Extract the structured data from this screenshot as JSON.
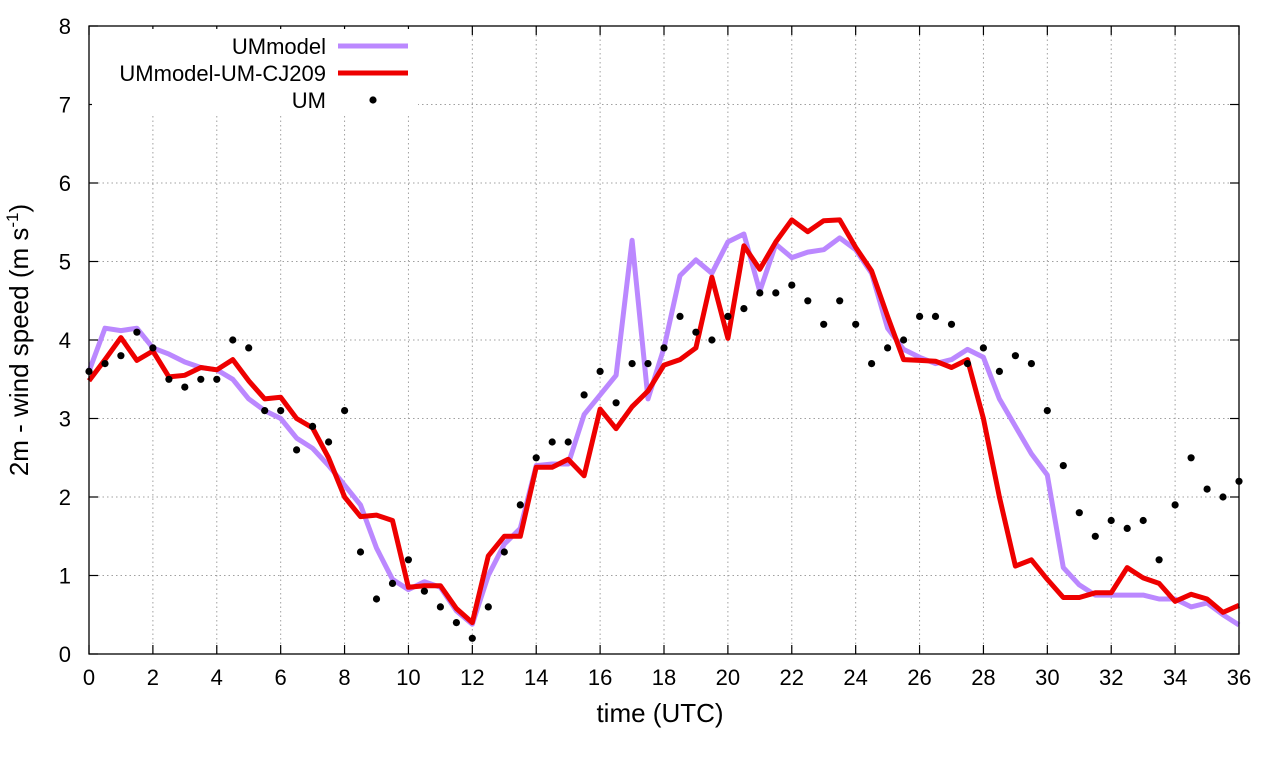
{
  "chart_data": {
    "type": "line",
    "title": "",
    "xlabel": "time (UTC)",
    "ylabel": "2m - wind speed  (m s",
    "ylabel_sup": "-1",
    "ylabel_tail": ")",
    "xlim": [
      0,
      36
    ],
    "ylim": [
      0,
      8
    ],
    "xticks": [
      "0",
      "2",
      "4",
      "6",
      "8",
      "10",
      "12",
      "14",
      "16",
      "18",
      "20",
      "22",
      "24",
      "26",
      "28",
      "30",
      "32",
      "34",
      "36"
    ],
    "yticks": [
      "0",
      "1",
      "2",
      "3",
      "4",
      "5",
      "6",
      "7",
      "8"
    ],
    "grid": true,
    "legend": "top-left",
    "series": [
      {
        "name": "UMmodel",
        "kind": "line",
        "color": "#bb88ff",
        "x": [
          0,
          0.5,
          1,
          1.5,
          2,
          2.5,
          3,
          3.5,
          4,
          4.5,
          5,
          5.5,
          6,
          6.5,
          7,
          7.5,
          8,
          8.5,
          9,
          9.5,
          10,
          10.5,
          11,
          11.5,
          12,
          12.5,
          13,
          13.5,
          14,
          14.5,
          15,
          15.5,
          16,
          16.5,
          17,
          17.5,
          18,
          18.5,
          19,
          19.5,
          20,
          20.5,
          21,
          21.5,
          22,
          22.5,
          23,
          23.5,
          24,
          24.5,
          25,
          25.5,
          26,
          26.5,
          27,
          27.5,
          28,
          28.5,
          29,
          29.5,
          30,
          30.5,
          31,
          31.5,
          32,
          32.5,
          33,
          33.5,
          34,
          34.5,
          35,
          35.5,
          36
        ],
        "y": [
          3.6,
          4.15,
          4.12,
          4.15,
          3.9,
          3.82,
          3.72,
          3.65,
          3.62,
          3.5,
          3.25,
          3.1,
          3.0,
          2.75,
          2.62,
          2.4,
          2.15,
          1.9,
          1.35,
          0.95,
          0.82,
          0.92,
          0.85,
          0.55,
          0.38,
          1.0,
          1.4,
          1.6,
          2.4,
          2.42,
          2.42,
          3.05,
          3.3,
          3.55,
          5.27,
          3.25,
          3.9,
          4.82,
          5.02,
          4.85,
          5.25,
          5.35,
          4.62,
          5.22,
          5.05,
          5.12,
          5.15,
          5.3,
          5.15,
          4.85,
          4.15,
          3.88,
          3.78,
          3.7,
          3.75,
          3.88,
          3.78,
          3.25,
          2.9,
          2.55,
          2.28,
          1.1,
          0.88,
          0.75,
          0.75,
          0.75,
          0.75,
          0.7,
          0.7,
          0.6,
          0.65,
          0.5,
          0.37
        ]
      },
      {
        "name": "UMmodel-UM-CJ209",
        "kind": "line",
        "color": "#ee0000",
        "x": [
          0,
          0.5,
          1,
          1.5,
          2,
          2.5,
          3,
          3.5,
          4,
          4.5,
          5,
          5.5,
          6,
          6.5,
          7,
          7.5,
          8,
          8.5,
          9,
          9.5,
          10,
          10.5,
          11,
          11.5,
          12,
          12.5,
          13,
          13.5,
          14,
          14.5,
          15,
          15.5,
          16,
          16.5,
          17,
          17.5,
          18,
          18.5,
          19,
          19.5,
          20,
          20.5,
          21,
          21.5,
          22,
          22.5,
          23,
          23.5,
          24,
          24.5,
          25,
          25.5,
          26,
          26.5,
          27,
          27.5,
          28,
          28.5,
          29,
          29.5,
          30,
          30.5,
          31,
          31.5,
          32,
          32.5,
          33,
          33.5,
          34,
          34.5,
          35,
          35.5,
          36
        ],
        "y": [
          3.48,
          3.75,
          4.03,
          3.74,
          3.86,
          3.53,
          3.55,
          3.65,
          3.62,
          3.75,
          3.48,
          3.25,
          3.27,
          3.0,
          2.88,
          2.5,
          2.0,
          1.75,
          1.77,
          1.7,
          0.85,
          0.87,
          0.87,
          0.58,
          0.4,
          1.25,
          1.5,
          1.5,
          2.38,
          2.38,
          2.48,
          2.27,
          3.12,
          2.87,
          3.15,
          3.35,
          3.68,
          3.75,
          3.9,
          4.8,
          4.02,
          5.2,
          4.9,
          5.25,
          5.53,
          5.38,
          5.52,
          5.53,
          5.18,
          4.88,
          4.3,
          3.75,
          3.74,
          3.73,
          3.65,
          3.75,
          3.0,
          2.0,
          1.12,
          1.2,
          0.95,
          0.72,
          0.72,
          0.78,
          0.78,
          1.1,
          0.97,
          0.9,
          0.67,
          0.76,
          0.7,
          0.53,
          0.62
        ]
      },
      {
        "name": "UM",
        "kind": "points",
        "color": "#000000",
        "x": [
          0,
          0.5,
          1,
          1.5,
          2,
          2.5,
          3,
          3.5,
          4,
          4.5,
          5,
          5.5,
          6,
          6.5,
          7,
          7.5,
          8,
          8.5,
          9,
          9.5,
          10,
          10.5,
          11,
          11.5,
          12,
          12.5,
          13,
          13.5,
          14,
          14.5,
          15,
          15.5,
          16,
          16.5,
          17,
          17.5,
          18,
          18.5,
          19,
          19.5,
          20,
          20.5,
          21,
          21.5,
          22,
          22.5,
          23,
          23.5,
          24,
          24.5,
          25,
          25.5,
          26,
          26.5,
          27,
          27.5,
          28,
          28.5,
          29,
          29.5,
          30,
          30.5,
          31,
          31.5,
          32,
          32.5,
          33,
          33.5,
          34,
          34.5,
          35,
          35.5,
          36
        ],
        "y": [
          3.6,
          3.7,
          3.8,
          4.1,
          3.9,
          3.5,
          3.4,
          3.5,
          3.5,
          4.0,
          3.9,
          3.1,
          3.1,
          2.6,
          2.9,
          2.7,
          3.1,
          1.3,
          0.7,
          0.9,
          1.2,
          0.8,
          0.6,
          0.4,
          0.2,
          0.6,
          1.3,
          1.9,
          2.5,
          2.7,
          2.7,
          3.3,
          3.6,
          3.2,
          3.7,
          3.7,
          3.9,
          4.3,
          4.1,
          4.0,
          4.3,
          4.4,
          4.6,
          4.6,
          4.7,
          4.5,
          4.2,
          4.5,
          4.2,
          3.7,
          3.9,
          4.0,
          4.3,
          4.3,
          4.2,
          3.7,
          3.9,
          3.6,
          3.8,
          3.7,
          3.1,
          2.4,
          1.8,
          1.5,
          1.7,
          1.6,
          1.7,
          1.2,
          1.9,
          2.5,
          2.1,
          2.0,
          2.2
        ]
      }
    ]
  }
}
